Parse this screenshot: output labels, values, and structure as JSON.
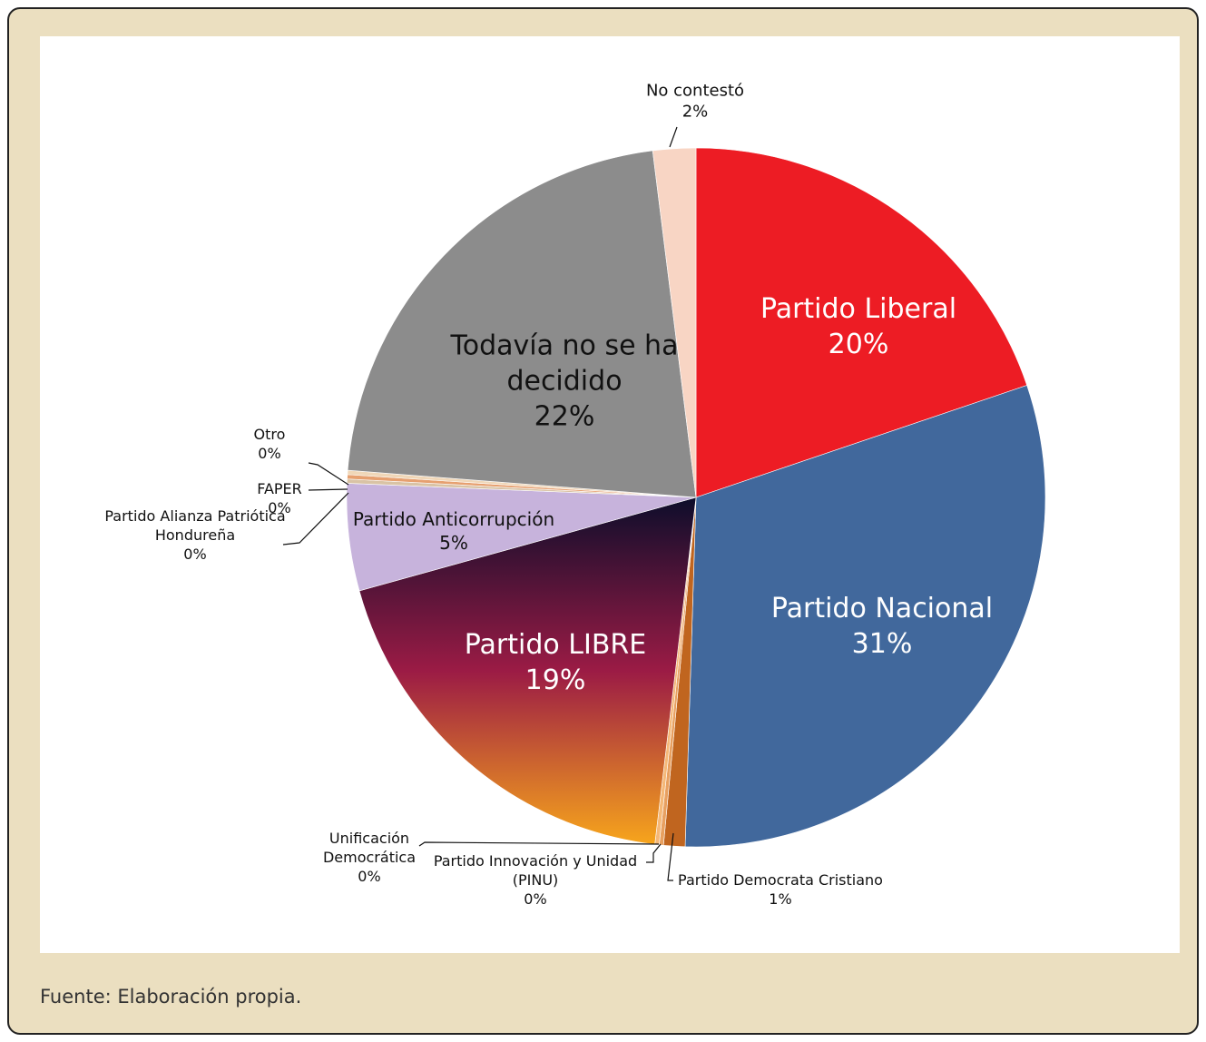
{
  "chart_data": {
    "type": "pie",
    "categories": [
      "Partido Liberal",
      "Partido Nacional",
      "Partido Democrata Cristiano",
      "Partido Innovación y Unidad (PINU)",
      "Unificación Democrática",
      "Partido LIBRE",
      "Partido Anticorrupción",
      "Partido Alianza Patriótica Hondureña",
      "FAPER",
      "Otro",
      "Todavía no se ha decidido",
      "No contestó"
    ],
    "values": [
      20,
      31,
      1,
      0.2,
      0.2,
      19,
      5,
      0.2,
      0.2,
      0.2,
      22,
      2
    ],
    "value_labels": [
      "20%",
      "31%",
      "1%",
      "0%",
      "0%",
      "19%",
      "5%",
      "0%",
      "0%",
      "0%",
      "22%",
      "2%"
    ],
    "colors": [
      "#ed1c24",
      "#41689c",
      "#c0651f",
      "#e8a060",
      "#f5b878",
      "#2a1240",
      "#c7b3dc",
      "#d9c3a5",
      "#e6a070",
      "#f0d7b8",
      "#8c8c8c",
      "#f8d5c4"
    ],
    "gradient": {
      "index": 5,
      "stops": [
        "#0d0d2b",
        "#9b1b45",
        "#f7a51c"
      ]
    }
  },
  "footer": "Fuente: Elaboración propia."
}
